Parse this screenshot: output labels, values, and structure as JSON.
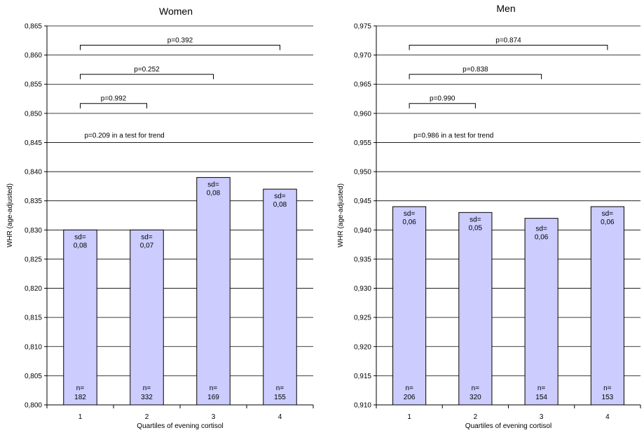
{
  "chart_data": [
    {
      "type": "bar",
      "title": "Women",
      "xlabel": "Quartiles of evening cortisol",
      "ylabel": "WHR (age-adjusted)",
      "ylim": [
        0.8,
        0.865
      ],
      "ytick_step": 0.005,
      "ytick_labels": [
        "0,800",
        "0,805",
        "0,810",
        "0,815",
        "0,820",
        "0,825",
        "0,830",
        "0,835",
        "0,840",
        "0,845",
        "0,850",
        "0,855",
        "0,860",
        "0,865"
      ],
      "grid": true,
      "categories": [
        "1",
        "2",
        "3",
        "4"
      ],
      "values": [
        0.83,
        0.83,
        0.839,
        0.837
      ],
      "sd_labels": [
        "sd=",
        "sd=",
        "sd=",
        "sd="
      ],
      "sd": [
        "0,08",
        "0,07",
        "0,08",
        "0,08"
      ],
      "n_labels": [
        "n=",
        "n=",
        "n=",
        "n="
      ],
      "n": [
        "182",
        "332",
        "169",
        "155"
      ],
      "comparisons": [
        {
          "from": "1",
          "to": "4",
          "label": "p=0.392",
          "y": 0.8617
        },
        {
          "from": "1",
          "to": "3",
          "label": "p=0.252",
          "y": 0.8567
        },
        {
          "from": "1",
          "to": "2",
          "label": "p=0.992",
          "y": 0.8517
        }
      ],
      "trend_text": "p=0.209 in a test for trend",
      "trend_y": 0.8462,
      "bar_color": "#ccccff"
    },
    {
      "type": "bar",
      "title": "Men",
      "xlabel": "Quartiles of evening cortisol",
      "ylabel": "WHR (age-adjusted)",
      "ylim": [
        0.91,
        0.975
      ],
      "ytick_step": 0.005,
      "ytick_labels": [
        "0,910",
        "0,915",
        "0,920",
        "0,925",
        "0,930",
        "0,935",
        "0,940",
        "0,945",
        "0,950",
        "0,955",
        "0,960",
        "0,965",
        "0,970",
        "0,975"
      ],
      "grid": true,
      "categories": [
        "1",
        "2",
        "3",
        "4"
      ],
      "values": [
        0.944,
        0.943,
        0.942,
        0.944
      ],
      "sd_labels": [
        "sd=",
        "sd=",
        "sd=",
        "sd="
      ],
      "sd": [
        "0,06",
        "0,05",
        "0,06",
        "0,06"
      ],
      "n_labels": [
        "n=",
        "n=",
        "n=",
        "n="
      ],
      "n": [
        "206",
        "320",
        "154",
        "153"
      ],
      "comparisons": [
        {
          "from": "1",
          "to": "4",
          "label": "p=0.874",
          "y": 0.9717
        },
        {
          "from": "1",
          "to": "3",
          "label": "p=0.838",
          "y": 0.9667
        },
        {
          "from": "1",
          "to": "2",
          "label": "p=0.990",
          "y": 0.9617
        }
      ],
      "trend_text": "p=0.986 in a test for trend",
      "trend_y": 0.9562,
      "bar_color": "#ccccff"
    }
  ]
}
